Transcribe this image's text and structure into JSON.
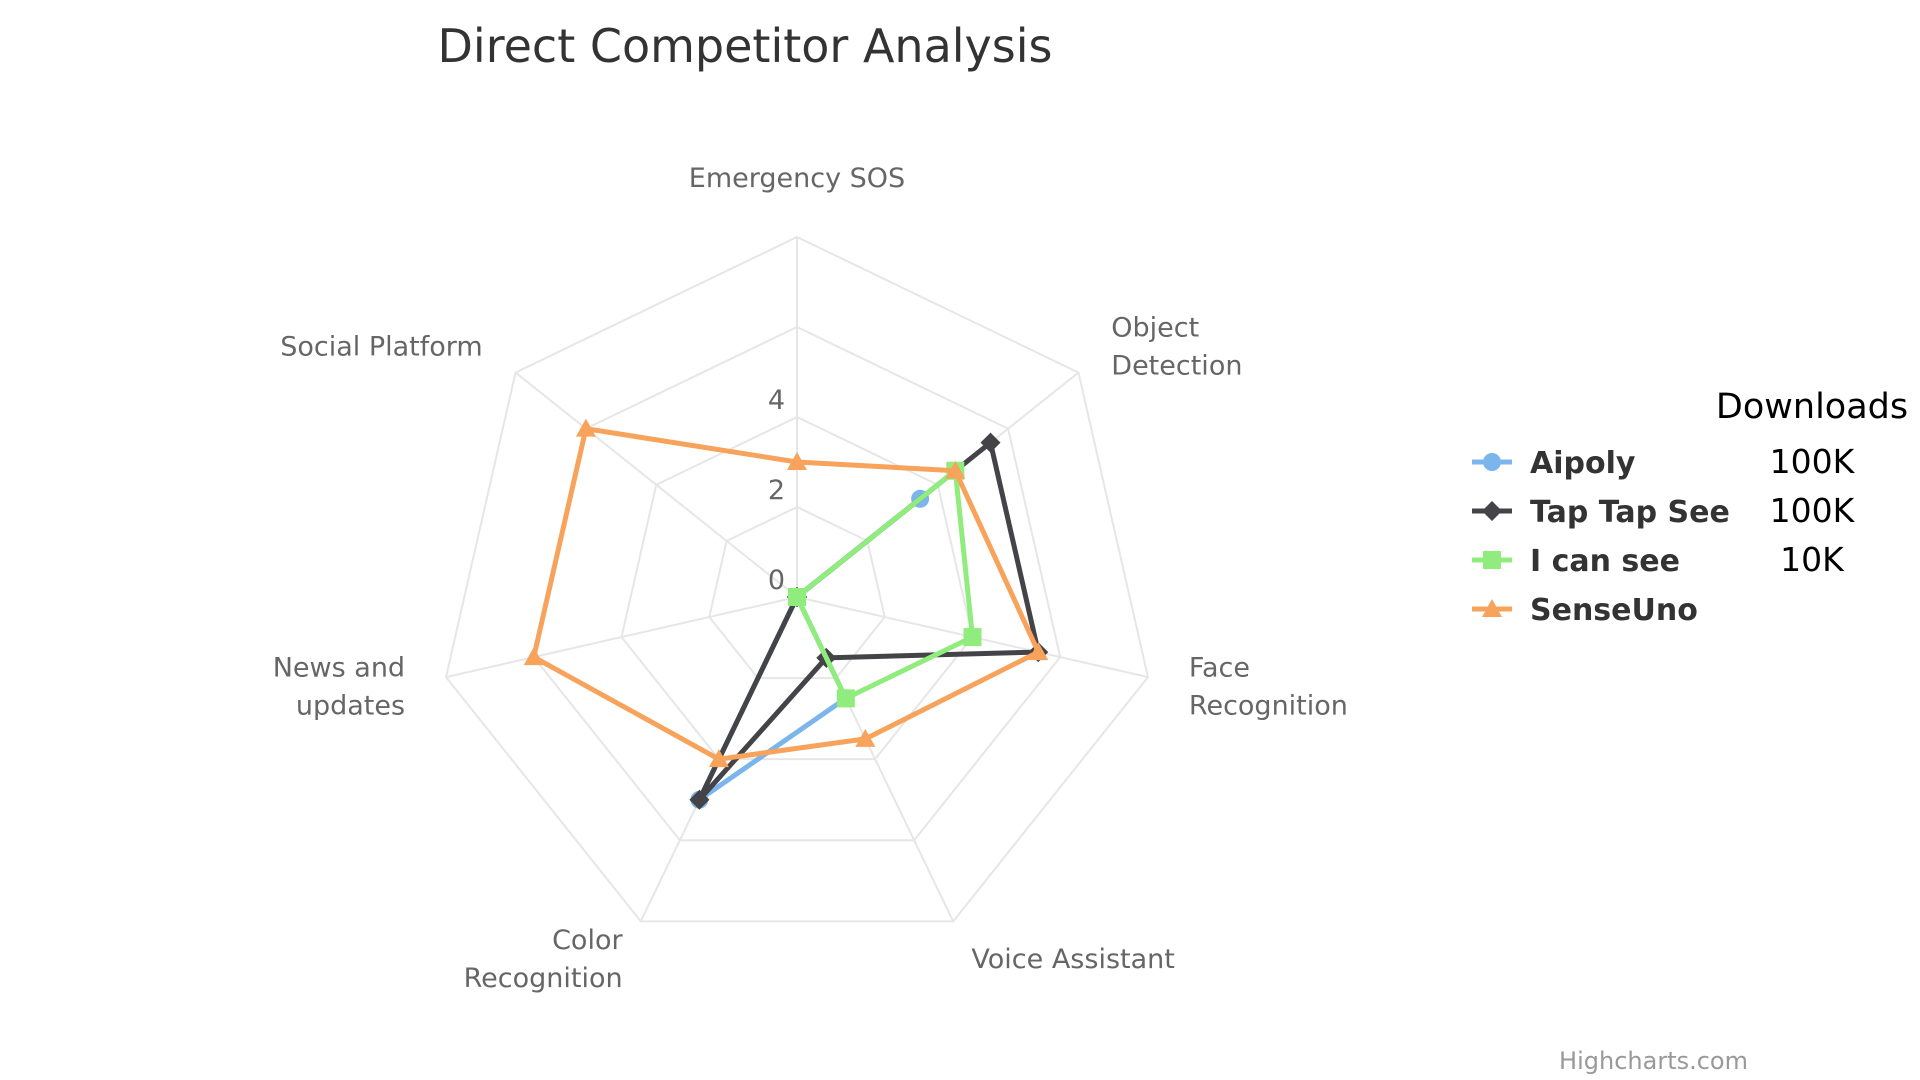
{
  "chart_data": {
    "type": "radar",
    "title": "Direct Competitor Analysis",
    "categories": [
      "Emergency SOS",
      "Object Detection",
      "Face Recognition",
      "Voice Assistant",
      "Color Recognition",
      "News and updates",
      "Social Platform"
    ],
    "category_lines": [
      [
        "Emergency SOS"
      ],
      [
        "Object",
        "Detection"
      ],
      [
        "Face",
        "Recognition"
      ],
      [
        "Voice Assistant"
      ],
      [
        "Color",
        "Recognition"
      ],
      [
        "News and",
        "updates"
      ],
      [
        "Social Platform"
      ]
    ],
    "ylim": [
      0,
      8
    ],
    "tick_labels": [
      "0",
      "2",
      "4"
    ],
    "tick_values": [
      0,
      2,
      4
    ],
    "grid": true,
    "legend_position": "right",
    "series": [
      {
        "name": "Aipoly",
        "color": "#7cb5ec",
        "marker": "circle",
        "values": [
          0,
          3.5,
          0,
          2.5,
          5,
          0,
          0
        ]
      },
      {
        "name": "Tap Tap See",
        "color": "#434348",
        "marker": "diamond",
        "values": [
          0,
          5.5,
          5.5,
          1.5,
          5,
          0,
          0
        ]
      },
      {
        "name": "I can see",
        "color": "#90ed7d",
        "marker": "square",
        "values": [
          0,
          4.5,
          4,
          2.5,
          0,
          0,
          0
        ]
      },
      {
        "name": "SenseUno",
        "color": "#f7a35c",
        "marker": "triangle",
        "values": [
          3,
          4.5,
          5.5,
          3.5,
          4,
          6,
          6
        ]
      }
    ]
  },
  "downloads": {
    "header": "Downloads",
    "values": [
      "100K",
      "100K",
      "10K"
    ]
  },
  "credits": "Highcharts.com",
  "grid_color": "#e6e6e6"
}
